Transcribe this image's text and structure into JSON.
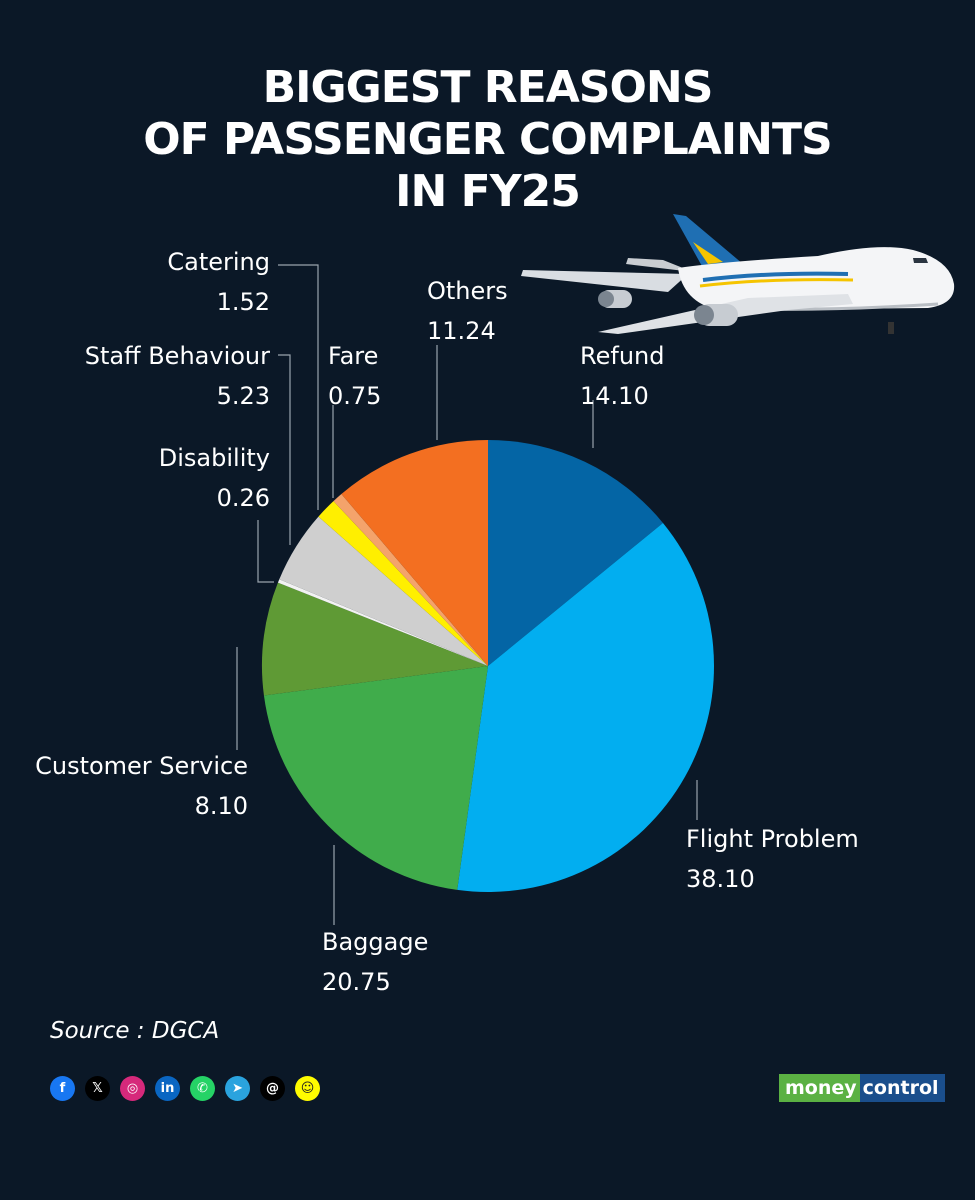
{
  "title_lines": [
    "BIGGEST REASONS",
    "OF PASSENGER COMPLAINTS",
    "IN FY25"
  ],
  "chart_data": {
    "type": "pie",
    "title": "BIGGEST REASONS OF PASSENGER COMPLAINTS IN FY25",
    "slices": [
      {
        "label": "Refund",
        "value": 14.1,
        "color": "#0465a5"
      },
      {
        "label": "Flight Problem",
        "value": 38.1,
        "color": "#02aef0"
      },
      {
        "label": "Baggage",
        "value": 20.75,
        "color": "#40ac4b"
      },
      {
        "label": "Customer Service",
        "value": 8.1,
        "color": "#5f9a35"
      },
      {
        "label": "Disability",
        "value": 0.26,
        "color": "#f2f2f2"
      },
      {
        "label": "Staff Behaviour",
        "value": 5.23,
        "color": "#cfcfcf"
      },
      {
        "label": "Catering",
        "value": 1.52,
        "color": "#ffef00"
      },
      {
        "label": "Fare",
        "value": 0.75,
        "color": "#f4a36b"
      },
      {
        "label": "Others",
        "value": 11.24,
        "color": "#f36f21"
      }
    ]
  },
  "labels": {
    "refund": {
      "name": "Refund",
      "value": "14.10"
    },
    "flight_problem": {
      "name": "Flight Problem",
      "value": "38.10"
    },
    "baggage": {
      "name": "Baggage",
      "value": "20.75"
    },
    "customer_service": {
      "name": "Customer Service",
      "value": "8.10"
    },
    "disability": {
      "name": "Disability",
      "value": "0.26"
    },
    "staff_behaviour": {
      "name": "Staff Behaviour",
      "value": "5.23"
    },
    "catering": {
      "name": "Catering",
      "value": "1.52"
    },
    "fare": {
      "name": "Fare",
      "value": "0.75"
    },
    "others": {
      "name": "Others",
      "value": "11.24"
    }
  },
  "source": "Source : DGCA",
  "social_icons": [
    {
      "name": "facebook-icon",
      "glyph": "f",
      "color": "#1877f2"
    },
    {
      "name": "x-icon",
      "glyph": "𝕏",
      "color": "#000000"
    },
    {
      "name": "instagram-icon",
      "glyph": "◎",
      "color": "#d6297b"
    },
    {
      "name": "linkedin-icon",
      "glyph": "in",
      "color": "#0a66c2"
    },
    {
      "name": "whatsapp-icon",
      "glyph": "✆",
      "color": "#25d366"
    },
    {
      "name": "telegram-icon",
      "glyph": "➤",
      "color": "#2aa3de"
    },
    {
      "name": "threads-icon",
      "glyph": "@",
      "color": "#000000"
    },
    {
      "name": "snapchat-icon",
      "glyph": "☺",
      "color": "#fffc00"
    }
  ],
  "logo": {
    "part1": "money",
    "part2": "control"
  }
}
